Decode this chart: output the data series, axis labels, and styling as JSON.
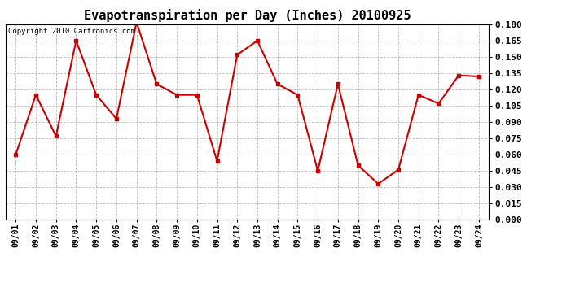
{
  "title": "Evapotranspiration per Day (Inches) 20100925",
  "copyright": "Copyright 2010 Cartronics.com",
  "x_labels": [
    "09/01",
    "09/02",
    "09/03",
    "09/04",
    "09/05",
    "09/06",
    "09/07",
    "09/08",
    "09/09",
    "09/10",
    "09/11",
    "09/12",
    "09/13",
    "09/14",
    "09/15",
    "09/16",
    "09/17",
    "09/18",
    "09/19",
    "09/20",
    "09/21",
    "09/22",
    "09/23",
    "09/24"
  ],
  "y_values": [
    0.06,
    0.115,
    0.077,
    0.165,
    0.115,
    0.093,
    0.182,
    0.125,
    0.115,
    0.115,
    0.054,
    0.152,
    0.165,
    0.125,
    0.115,
    0.045,
    0.125,
    0.05,
    0.033,
    0.046,
    0.115,
    0.107,
    0.133,
    0.132
  ],
  "line_color": "#cc0000",
  "marker": "s",
  "marker_size": 2.5,
  "line_width": 1.5,
  "ylim": [
    0.0,
    0.18
  ],
  "yticks": [
    0.0,
    0.015,
    0.03,
    0.045,
    0.06,
    0.075,
    0.09,
    0.105,
    0.12,
    0.135,
    0.15,
    0.165,
    0.18
  ],
  "grid_color": "#bbbbbb",
  "bg_color": "#ffffff",
  "title_fontsize": 11,
  "copyright_fontsize": 6.5,
  "tick_label_fontsize": 7,
  "ytick_fontsize": 8
}
